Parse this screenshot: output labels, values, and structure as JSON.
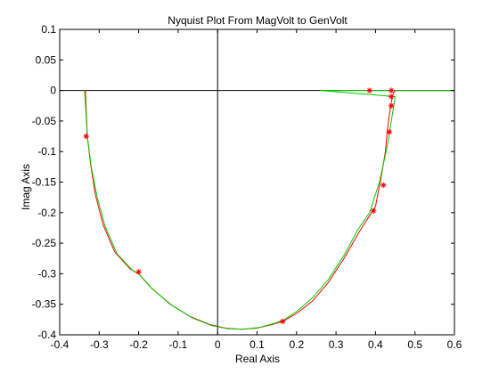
{
  "chart_data": {
    "type": "line",
    "title": "Nyquist Plot From MagVolt to GenVolt",
    "xlabel": "Real Axis",
    "ylabel": "Imag Axis",
    "xlim": [
      -0.4,
      0.6
    ],
    "ylim": [
      -0.4,
      0.1
    ],
    "xticks": [
      "-0.4",
      "-0.3",
      "-0.2",
      "-0.1",
      "0",
      "0.1",
      "0.2",
      "0.3",
      "0.4",
      "0.5",
      "0.6"
    ],
    "yticks": [
      "0.1",
      "0.05",
      "0",
      "-0.05",
      "-0.1",
      "-0.15",
      "-0.2",
      "-0.25",
      "-0.3",
      "-0.35",
      "-0.4"
    ],
    "grid": false,
    "colors": {
      "series_red": "#ff0000",
      "series_green": "#00cc00",
      "axis": "#000000"
    },
    "series": [
      {
        "color": "red",
        "x": [
          -0.335,
          -0.333,
          -0.33,
          -0.322,
          -0.31,
          -0.29,
          -0.26,
          -0.22,
          -0.2,
          -0.17,
          -0.12,
          -0.07,
          -0.02,
          0.02,
          0.06,
          0.1,
          0.14,
          0.165,
          0.2,
          0.24,
          0.28,
          0.32,
          0.36,
          0.39,
          0.4,
          0.415,
          0.425,
          0.43,
          0.435,
          0.44,
          0.445,
          0.45,
          0.5,
          0.6
        ],
        "y": [
          0.0,
          -0.03,
          -0.075,
          -0.12,
          -0.17,
          -0.22,
          -0.265,
          -0.293,
          -0.3,
          -0.322,
          -0.35,
          -0.37,
          -0.383,
          -0.389,
          -0.391,
          -0.389,
          -0.383,
          -0.378,
          -0.365,
          -0.345,
          -0.315,
          -0.275,
          -0.23,
          -0.2,
          -0.19,
          -0.14,
          -0.1,
          -0.065,
          -0.04,
          -0.02,
          -0.005,
          0.0,
          0.0,
          0.0
        ]
      },
      {
        "color": "green",
        "x": [
          -0.337,
          -0.334,
          -0.33,
          -0.32,
          -0.305,
          -0.285,
          -0.255,
          -0.215,
          -0.2,
          -0.165,
          -0.115,
          -0.065,
          -0.015,
          0.025,
          0.065,
          0.105,
          0.145,
          0.17,
          0.2,
          0.24,
          0.28,
          0.32,
          0.355,
          0.385,
          0.4,
          0.41,
          0.42,
          0.43,
          0.44,
          0.45,
          0.26,
          0.6
        ],
        "y": [
          0.0,
          -0.03,
          -0.075,
          -0.125,
          -0.175,
          -0.222,
          -0.267,
          -0.295,
          -0.3,
          -0.325,
          -0.352,
          -0.372,
          -0.385,
          -0.39,
          -0.391,
          -0.388,
          -0.381,
          -0.375,
          -0.362,
          -0.34,
          -0.31,
          -0.27,
          -0.228,
          -0.2,
          -0.17,
          -0.15,
          -0.12,
          -0.09,
          -0.05,
          -0.01,
          0.0,
          0.0
        ]
      }
    ],
    "markers": [
      {
        "x": -0.333,
        "y": -0.075
      },
      {
        "x": -0.2,
        "y": -0.297
      },
      {
        "x": 0.165,
        "y": -0.378
      },
      {
        "x": 0.395,
        "y": -0.197
      },
      {
        "x": 0.42,
        "y": -0.155
      },
      {
        "x": 0.435,
        "y": -0.068
      },
      {
        "x": 0.44,
        "y": -0.025
      },
      {
        "x": 0.44,
        "y": -0.01
      },
      {
        "x": 0.385,
        "y": 0.0
      },
      {
        "x": 0.44,
        "y": 0.0
      }
    ]
  }
}
